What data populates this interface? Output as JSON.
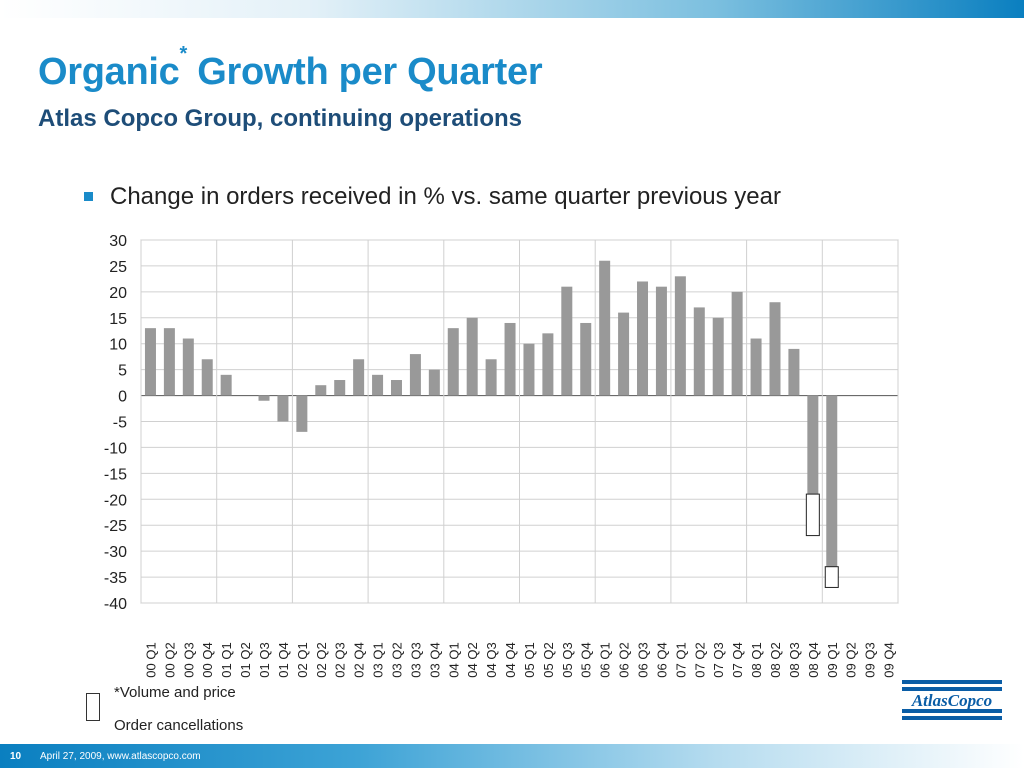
{
  "slide": {
    "title": "Organic",
    "title_mark": "*",
    "title_rest": " Growth per Quarter",
    "subtitle": "Atlas Copco Group, continuing operations",
    "bullet": "Change in orders received in % vs. same quarter previous year",
    "legend_note": "*Volume and price",
    "legend_cancel": "Order cancellations",
    "logo_text": "AtlasCopco",
    "page_number": "10",
    "footer": "April 27, 2009, www.atlascopco.com"
  },
  "colors": {
    "title": "#1a8bc9",
    "subtitle": "#1e4d78",
    "bar": "#999999",
    "cancellation_fill": "#ffffff",
    "logo": "#0a5da6"
  },
  "chart_data": {
    "type": "bar",
    "categories": [
      "00 Q1",
      "00 Q2",
      "00 Q3",
      "00 Q4",
      "01 Q1",
      "01 Q2",
      "01 Q3",
      "01 Q4",
      "02 Q1",
      "02 Q2",
      "02 Q3",
      "02 Q4",
      "03 Q1",
      "03 Q2",
      "03 Q3",
      "03 Q4",
      "04 Q1",
      "04 Q2",
      "04 Q3",
      "04 Q4",
      "05 Q1",
      "05 Q2",
      "05 Q3",
      "05 Q4",
      "06 Q1",
      "06 Q2",
      "06 Q3",
      "06 Q4",
      "07 Q1",
      "07 Q2",
      "07 Q3",
      "07 Q4",
      "08 Q1",
      "08 Q2",
      "08 Q3",
      "08 Q4",
      "09 Q1",
      "09 Q2",
      "09 Q3",
      "09 Q4"
    ],
    "values": [
      13,
      13,
      11,
      7,
      4,
      0,
      -1,
      -5,
      -7,
      2,
      3,
      7,
      4,
      3,
      8,
      5,
      13,
      15,
      7,
      14,
      10,
      12,
      21,
      14,
      26,
      16,
      22,
      21,
      23,
      17,
      15,
      20,
      11,
      18,
      9,
      -19,
      -33,
      null,
      null,
      null
    ],
    "cancellations": [
      {
        "category": "08 Q4",
        "from": -19,
        "to": -27
      },
      {
        "category": "09 Q1",
        "from": -33,
        "to": -37
      }
    ],
    "yticks": [
      30,
      25,
      20,
      15,
      10,
      5,
      0,
      -5,
      -10,
      -15,
      -20,
      -25,
      -30,
      -35,
      -40
    ],
    "ylim": [
      -40,
      30
    ],
    "grid": true
  }
}
